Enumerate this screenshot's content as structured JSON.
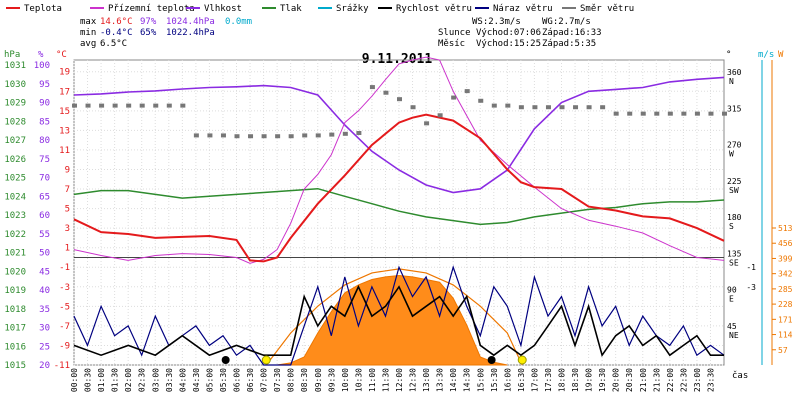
{
  "chart_data": {
    "type": "line",
    "title": "9.11.2011",
    "legend": [
      {
        "key": "teplota",
        "label": "Teplota",
        "color": "#e41a1c"
      },
      {
        "key": "prizemni",
        "label": "Přízemní teplota",
        "color": "#cc33cc"
      },
      {
        "key": "vlhkost",
        "label": "Vlhkost",
        "color": "#8a2be2"
      },
      {
        "key": "tlak",
        "label": "Tlak",
        "color": "#2e8b2e"
      },
      {
        "key": "srazky",
        "label": "Srážky",
        "color": "#00aacc"
      },
      {
        "key": "rychlost",
        "label": "Rychlost větru",
        "color": "#000000"
      },
      {
        "key": "naraz",
        "label": "Náraz větru",
        "color": "#000080"
      },
      {
        "key": "smer",
        "label": "Směr větru",
        "color": "#777777"
      }
    ],
    "stats": {
      "max_label": "max",
      "min_label": "min",
      "avg_label": "avg",
      "max_temp": "14.6°C",
      "max_hum": "97%",
      "max_press": "1024.4hPa",
      "max_rain": "0.0mm",
      "min_temp": "-0.4°C",
      "min_hum": "65%",
      "min_press": "1022.4hPa",
      "avg_temp": "6.5°C",
      "ws": "WS:2.3m/s",
      "wg": "WG:2.7m/s",
      "slunce": "Slunce",
      "mesic": "Měsíc",
      "sun_rise": "Východ:07:06",
      "sun_set": "Západ:16:33",
      "moon_rise": "Východ:15:25",
      "moon_set": "Západ:5:35"
    },
    "axes": {
      "hpa_title": "hPa",
      "pct_title": "%",
      "c_title": "°C",
      "deg_title": "°",
      "ms_title": "m/s",
      "w_title": "W",
      "hpa_ticks": [
        "1031",
        "1030",
        "1029",
        "1028",
        "1027",
        "1026",
        "1025",
        "1024",
        "1023",
        "1022",
        "1021",
        "1020",
        "1019",
        "1018",
        "1017",
        "1016",
        "1015"
      ],
      "pct_ticks": [
        "100",
        "95",
        "90",
        "85",
        "80",
        "75",
        "70",
        "65",
        "60",
        "55",
        "50",
        "45",
        "40",
        "35",
        "30",
        "25",
        "20"
      ],
      "c_ticks": [
        "19",
        "17",
        "15",
        "13",
        "11",
        "9",
        "7",
        "5",
        "3",
        "1",
        "-1",
        "-3",
        "-5",
        "-7",
        "-9",
        "-11"
      ],
      "deg_ticks": [
        "360",
        "315",
        "270",
        "225",
        "180",
        "135",
        "90",
        "45"
      ],
      "dir_ticks": [
        "N",
        "",
        "W",
        "SW",
        "S",
        "SE",
        "E",
        "NE"
      ],
      "ms_ticks": [
        "-1",
        "-3"
      ],
      "w_ticks": [
        "513",
        "456",
        "399",
        "342",
        "285",
        "228",
        "171",
        "114",
        "57"
      ],
      "xlabel": "čas",
      "x_ticks": [
        "00:00",
        "00:30",
        "01:00",
        "01:30",
        "02:00",
        "02:30",
        "03:00",
        "03:30",
        "04:00",
        "04:30",
        "05:00",
        "05:30",
        "06:00",
        "06:30",
        "07:00",
        "07:30",
        "08:00",
        "08:30",
        "09:00",
        "09:30",
        "10:00",
        "10:30",
        "11:00",
        "11:30",
        "12:00",
        "12:30",
        "13:00",
        "13:30",
        "14:00",
        "14:30",
        "15:00",
        "15:30",
        "16:00",
        "16:30",
        "17:00",
        "17:30",
        "18:00",
        "18:30",
        "19:00",
        "19:30",
        "20:00",
        "20:30",
        "21:00",
        "21:30",
        "22:00",
        "22:30",
        "23:00",
        "23:30"
      ]
    },
    "series": {
      "teplota": {
        "x": [
          0,
          1,
          2,
          3,
          4,
          5,
          6,
          6.5,
          7,
          7.5,
          8,
          9,
          10,
          11,
          12,
          12.5,
          13,
          14,
          15,
          16,
          16.5,
          17,
          18,
          19,
          20,
          21,
          22,
          23,
          24
        ],
        "y": [
          3.9,
          2.6,
          2.4,
          2.0,
          2.1,
          2.2,
          1.8,
          -0.3,
          -0.4,
          0.0,
          2.0,
          5.5,
          8.4,
          11.5,
          13.8,
          14.3,
          14.6,
          14.0,
          12.2,
          9.0,
          7.7,
          7.2,
          7.0,
          5.2,
          4.8,
          4.2,
          4.0,
          3.0,
          1.7
        ]
      },
      "prizemni": {
        "x": [
          0,
          1,
          2,
          3,
          4,
          5,
          6,
          6.5,
          7,
          7.5,
          8,
          8.5,
          9,
          9.5,
          10,
          10.5,
          11,
          11.5,
          12,
          12.5,
          13,
          13.5,
          14,
          15,
          16,
          17,
          18,
          19,
          20,
          21,
          22,
          23,
          24
        ],
        "y": [
          0.8,
          0.2,
          -0.3,
          0.2,
          0.4,
          0.3,
          0.0,
          -0.6,
          -0.2,
          0.8,
          3.5,
          7.0,
          8.5,
          10.5,
          13.8,
          15.0,
          16.5,
          18.2,
          19.8,
          20.2,
          20.5,
          20.2,
          17.0,
          12.0,
          9.5,
          7.2,
          5.0,
          3.8,
          3.2,
          2.5,
          1.2,
          0.0,
          -0.3
        ]
      },
      "vlhkost": {
        "x": [
          0,
          1,
          2,
          3,
          4,
          5,
          6,
          7,
          8,
          9,
          10,
          11,
          12,
          13,
          14,
          15,
          16,
          17,
          18,
          19,
          20,
          21,
          22,
          23,
          24
        ],
        "y": [
          92,
          92.3,
          92.8,
          93.1,
          93.6,
          94,
          94.2,
          94.5,
          94,
          92,
          84,
          77,
          72,
          68,
          66,
          67,
          72,
          83,
          90,
          93,
          93.5,
          94,
          95.5,
          96.2,
          96.7
        ]
      },
      "tlak": {
        "x": [
          0,
          1,
          2,
          3,
          4,
          5,
          6,
          7,
          8,
          9,
          10,
          11,
          12,
          13,
          14,
          15,
          16,
          17,
          18,
          19,
          20,
          21,
          22,
          23,
          24
        ],
        "y": [
          1024.1,
          1024.3,
          1024.3,
          1024.1,
          1023.9,
          1024.0,
          1024.1,
          1024.2,
          1024.3,
          1024.4,
          1024.0,
          1023.6,
          1023.2,
          1022.9,
          1022.7,
          1022.5,
          1022.6,
          1022.9,
          1023.1,
          1023.3,
          1023.4,
          1023.6,
          1023.7,
          1023.7,
          1023.8
        ]
      },
      "rychlost": {
        "x": [
          0,
          1,
          2,
          3,
          4,
          5,
          6,
          7,
          7.5,
          8,
          8.5,
          9,
          9.5,
          10,
          10.5,
          11,
          11.5,
          12,
          12.5,
          13,
          13.5,
          14,
          14.5,
          15,
          15.5,
          16,
          16.5,
          17,
          17.5,
          18,
          18.5,
          19,
          19.5,
          20,
          20.5,
          21,
          21.5,
          22,
          22.5,
          23,
          23.5,
          24
        ],
        "y": [
          -9,
          -10,
          -9,
          -10,
          -8,
          -10,
          -9,
          -10,
          -10,
          -10,
          -4,
          -7,
          -5,
          -6,
          -3,
          -6,
          -5,
          -3,
          -6,
          -5,
          -4,
          -6,
          -4,
          -9,
          -10,
          -9,
          -10,
          -9,
          -7,
          -5,
          -9,
          -5,
          -10,
          -8,
          -7,
          -9,
          -8,
          -10,
          -9,
          -8,
          -10,
          -10
        ]
      },
      "naraz": {
        "x": [
          0,
          0.5,
          1,
          1.5,
          2,
          2.5,
          3,
          3.5,
          4,
          4.5,
          5,
          5.5,
          6,
          6.5,
          7,
          7.5,
          8,
          8.5,
          9,
          9.5,
          10,
          10.5,
          11,
          11.5,
          12,
          12.5,
          13,
          13.5,
          14,
          14.5,
          15,
          15.5,
          16,
          16.5,
          17,
          17.5,
          18,
          18.5,
          19,
          19.5,
          20,
          20.5,
          21,
          21.5,
          22,
          22.5,
          23,
          23.5,
          24
        ],
        "y": [
          -6,
          -9,
          -5,
          -8,
          -7,
          -10,
          -6,
          -9,
          -8,
          -7,
          -9,
          -8,
          -10,
          -9,
          -11,
          -11,
          -11,
          -7,
          -3,
          -8,
          -2,
          -7,
          -3,
          -6,
          -1,
          -4,
          -2,
          -6,
          -1,
          -5,
          -8,
          -3,
          -5,
          -9,
          -2,
          -6,
          -4,
          -8,
          -3,
          -7,
          -5,
          -9,
          -6,
          -8,
          -9,
          -7,
          -10,
          -9,
          -10
        ]
      },
      "smer": {
        "x": [
          0,
          0.5,
          1,
          1.5,
          2,
          2.5,
          3,
          3.5,
          4,
          4.5,
          5,
          5.5,
          6,
          6.5,
          7,
          7.5,
          8,
          8.5,
          9,
          9.5,
          10,
          10.5,
          11,
          11.5,
          12,
          12.5,
          13,
          13.5,
          14,
          14.5,
          15,
          15.5,
          16,
          16.5,
          17,
          17.5,
          18,
          18.5,
          19,
          19.5,
          20,
          20.5,
          21,
          21.5,
          22,
          22.5,
          23,
          23.5,
          24
        ],
        "y": [
          322,
          322,
          322,
          322,
          322,
          322,
          322,
          322,
          322,
          285,
          285,
          285,
          284,
          284,
          284,
          284,
          284,
          285,
          285,
          286,
          287,
          288,
          345,
          338,
          330,
          320,
          300,
          310,
          332,
          340,
          328,
          322,
          322,
          320,
          320,
          320,
          320,
          320,
          320,
          320,
          312,
          312,
          312,
          312,
          312,
          312,
          312,
          312,
          312
        ]
      },
      "sun_w": {
        "x": [
          7.1,
          8,
          9,
          10,
          11,
          12,
          13,
          14,
          15,
          16,
          16.55
        ],
        "y": [
          0,
          120,
          220,
          300,
          345,
          360,
          345,
          300,
          220,
          120,
          0
        ]
      },
      "radiation_w": {
        "x": [
          7.5,
          8,
          8.5,
          9,
          9.5,
          10,
          10.5,
          11,
          11.5,
          12,
          12.5,
          13,
          13.5,
          14,
          14.5,
          15,
          15.5,
          16
        ],
        "y": [
          0,
          8,
          30,
          120,
          200,
          270,
          300,
          320,
          330,
          335,
          330,
          320,
          310,
          250,
          150,
          30,
          10,
          0
        ]
      }
    },
    "markers": {
      "sun_rise_h": 7.1,
      "sun_set_h": 16.55,
      "moon_set_h": 5.6,
      "moon_rise_h": 15.42
    }
  }
}
